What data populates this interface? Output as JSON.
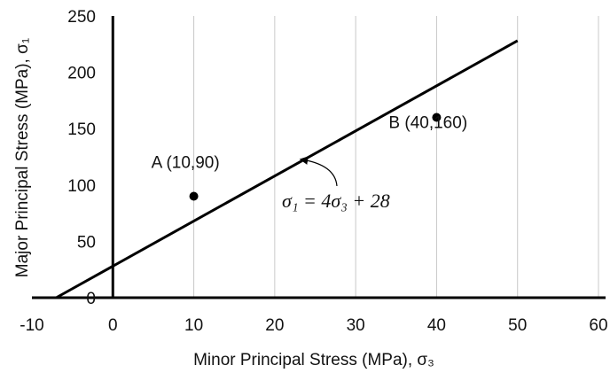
{
  "chart_data": {
    "type": "scatter",
    "title": "",
    "xlabel": "Minor Principal Stress (MPa), σ₃",
    "ylabel": "Major Principal Stress (MPa), σ₁",
    "xlim": [
      -10,
      60
    ],
    "ylim": [
      0,
      250
    ],
    "x_ticks": [
      -10,
      0,
      10,
      20,
      30,
      40,
      50,
      60
    ],
    "y_ticks": [
      0,
      50,
      100,
      150,
      200,
      250
    ],
    "grid": "vertical",
    "colors": {
      "axis": "#000000",
      "grid": "#c8c8c8",
      "line": "#000000",
      "point": "#000000"
    },
    "points": [
      {
        "label": "A (10,90)",
        "x": 10,
        "y": 90
      },
      {
        "label": "B (40,160)",
        "x": 40,
        "y": 160
      }
    ],
    "line": {
      "equation": "σ₁ = 4σ₃ + 28",
      "slope": 4,
      "intercept": 28,
      "x_start": -7,
      "x_end": 50
    }
  }
}
